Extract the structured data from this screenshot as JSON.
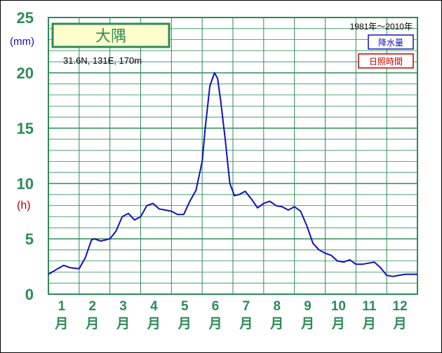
{
  "chart_data": {
    "type": "line",
    "station": "大隅",
    "coordinates": "31.6N, 131E, 170m",
    "period": "1981年～2010年",
    "y_unit_precip": "(mm)",
    "y_unit_sun": "(h)",
    "yticks": [
      "0",
      "5",
      "10",
      "15",
      "20",
      "25"
    ],
    "ylim": [
      0,
      25
    ],
    "grid": true,
    "legend": [
      {
        "label": "降水量",
        "color": "#1010c0"
      },
      {
        "label": "日照時間",
        "color": "#c00000"
      }
    ],
    "months": [
      {
        "num": "1",
        "kanji": "月"
      },
      {
        "num": "2",
        "kanji": "月"
      },
      {
        "num": "3",
        "kanji": "月"
      },
      {
        "num": "4",
        "kanji": "月"
      },
      {
        "num": "5",
        "kanji": "月"
      },
      {
        "num": "6",
        "kanji": "月"
      },
      {
        "num": "7",
        "kanji": "月"
      },
      {
        "num": "8",
        "kanji": "月"
      },
      {
        "num": "9",
        "kanji": "月"
      },
      {
        "num": "10",
        "kanji": "月"
      },
      {
        "num": "11",
        "kanji": "月"
      },
      {
        "num": "12",
        "kanji": "月"
      }
    ],
    "xlim": [
      0.5,
      12.5
    ],
    "series": [
      {
        "color": "#1010c0",
        "x": [
          0.5,
          0.8,
          1.0,
          1.2,
          1.5,
          1.7,
          1.9,
          2.0,
          2.2,
          2.5,
          2.7,
          2.9,
          3.1,
          3.3,
          3.5,
          3.7,
          3.9,
          4.1,
          4.3,
          4.5,
          4.7,
          4.9,
          5.1,
          5.3,
          5.5,
          5.6,
          5.75,
          5.9,
          6.0,
          6.1,
          6.25,
          6.4,
          6.55,
          6.7,
          6.9,
          7.1,
          7.3,
          7.5,
          7.7,
          7.9,
          8.1,
          8.3,
          8.5,
          8.7,
          8.9,
          9.1,
          9.3,
          9.5,
          9.7,
          9.9,
          10.1,
          10.3,
          10.5,
          10.7,
          10.9,
          11.1,
          11.3,
          11.5,
          11.7,
          11.9,
          12.1,
          12.3,
          12.5
        ],
        "y": [
          1.8,
          2.3,
          2.6,
          2.4,
          2.3,
          3.3,
          4.9,
          5.0,
          4.8,
          5.0,
          5.7,
          7.0,
          7.3,
          6.7,
          7.0,
          8.0,
          8.2,
          7.7,
          7.6,
          7.5,
          7.2,
          7.2,
          8.4,
          9.4,
          12.0,
          15.0,
          18.8,
          20.0,
          19.5,
          17.5,
          14.0,
          10.0,
          8.9,
          9.0,
          9.3,
          8.6,
          7.8,
          8.2,
          8.4,
          8.0,
          7.9,
          7.6,
          7.9,
          7.5,
          6.2,
          4.6,
          4.0,
          3.7,
          3.5,
          3.0,
          2.9,
          3.1,
          2.7,
          2.7,
          2.8,
          2.9,
          2.4,
          1.7,
          1.6,
          1.7,
          1.8,
          1.8,
          1.8
        ]
      }
    ]
  }
}
